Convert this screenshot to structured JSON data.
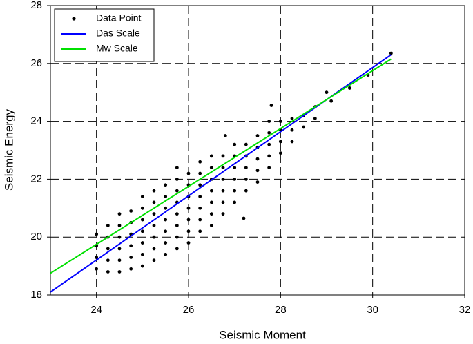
{
  "chart_data": {
    "type": "scatter",
    "x_label": "Seismic Moment",
    "y_label": "Seismic Energy",
    "xlim": [
      23,
      32
    ],
    "xticks": [
      24,
      26,
      28,
      30,
      32
    ],
    "ylim": [
      18,
      28
    ],
    "yticks": [
      18,
      20,
      22,
      24,
      26,
      28
    ],
    "grid": true,
    "legend": "upper left",
    "series": [
      {
        "name": "Data Point",
        "color": "#000000",
        "mode": "markers",
        "x": [
          24.0,
          24.0,
          24.0,
          24.0,
          24.25,
          24.25,
          24.25,
          24.25,
          24.25,
          24.5,
          24.5,
          24.5,
          24.5,
          24.5,
          24.5,
          24.75,
          24.75,
          24.75,
          24.75,
          24.75,
          24.75,
          25.0,
          25.0,
          25.0,
          25.0,
          25.0,
          25.0,
          25.0,
          25.25,
          25.25,
          25.25,
          25.25,
          25.25,
          25.25,
          25.25,
          25.5,
          25.5,
          25.5,
          25.5,
          25.5,
          25.5,
          25.5,
          25.75,
          25.75,
          25.75,
          25.75,
          25.75,
          25.75,
          25.75,
          25.75,
          26.0,
          26.0,
          26.0,
          26.0,
          26.0,
          26.0,
          26.0,
          26.25,
          26.25,
          26.25,
          26.25,
          26.25,
          26.25,
          26.25,
          26.5,
          26.5,
          26.5,
          26.5,
          26.5,
          26.5,
          26.5,
          26.75,
          26.75,
          26.75,
          26.75,
          26.75,
          26.75,
          27.0,
          27.0,
          27.0,
          27.0,
          27.0,
          27.0,
          27.25,
          27.25,
          27.25,
          27.25,
          27.25,
          27.5,
          27.5,
          27.5,
          27.5,
          27.5,
          27.75,
          27.75,
          27.75,
          27.75,
          27.75,
          28.0,
          28.0,
          28.0,
          28.0,
          28.25,
          28.25,
          28.25,
          28.5,
          28.5,
          28.75,
          28.75,
          29.0,
          29.1,
          29.5,
          29.9,
          30.4,
          27.2,
          27.8,
          26.8
        ],
        "values": [
          18.9,
          19.3,
          19.7,
          20.1,
          18.8,
          19.2,
          19.6,
          20.0,
          20.4,
          18.8,
          19.2,
          19.6,
          20.0,
          20.4,
          20.8,
          18.9,
          19.3,
          19.7,
          20.1,
          20.5,
          20.9,
          19.0,
          19.4,
          19.8,
          20.2,
          20.6,
          21.0,
          21.4,
          19.2,
          19.6,
          20.0,
          20.4,
          20.8,
          21.2,
          21.6,
          19.4,
          19.8,
          20.2,
          20.6,
          21.0,
          21.4,
          21.8,
          19.6,
          20.0,
          20.4,
          20.8,
          21.2,
          21.6,
          22.0,
          22.4,
          19.8,
          20.2,
          20.6,
          21.0,
          21.4,
          21.8,
          22.2,
          20.2,
          20.6,
          21.0,
          21.4,
          21.8,
          22.2,
          22.6,
          20.4,
          20.8,
          21.2,
          21.6,
          22.0,
          22.4,
          22.8,
          20.8,
          21.2,
          21.6,
          22.0,
          22.4,
          22.8,
          21.2,
          21.6,
          22.0,
          22.4,
          22.8,
          23.2,
          21.6,
          22.0,
          22.4,
          22.8,
          23.2,
          21.9,
          22.3,
          22.7,
          23.1,
          23.5,
          22.4,
          22.8,
          23.2,
          23.6,
          24.0,
          22.9,
          23.3,
          23.7,
          24.0,
          23.3,
          23.7,
          24.1,
          23.8,
          24.2,
          24.1,
          24.5,
          25.0,
          24.7,
          25.15,
          25.6,
          26.35,
          20.65,
          24.55,
          23.5
        ]
      },
      {
        "name": "Das Scale",
        "color": "#0000ff",
        "mode": "line",
        "x": [
          23,
          30.4
        ],
        "values": [
          18.1,
          26.3
        ]
      },
      {
        "name": "Mw Scale",
        "color": "#00e000",
        "mode": "line",
        "x": [
          23,
          30.4
        ],
        "values": [
          18.75,
          26.15
        ]
      }
    ]
  }
}
